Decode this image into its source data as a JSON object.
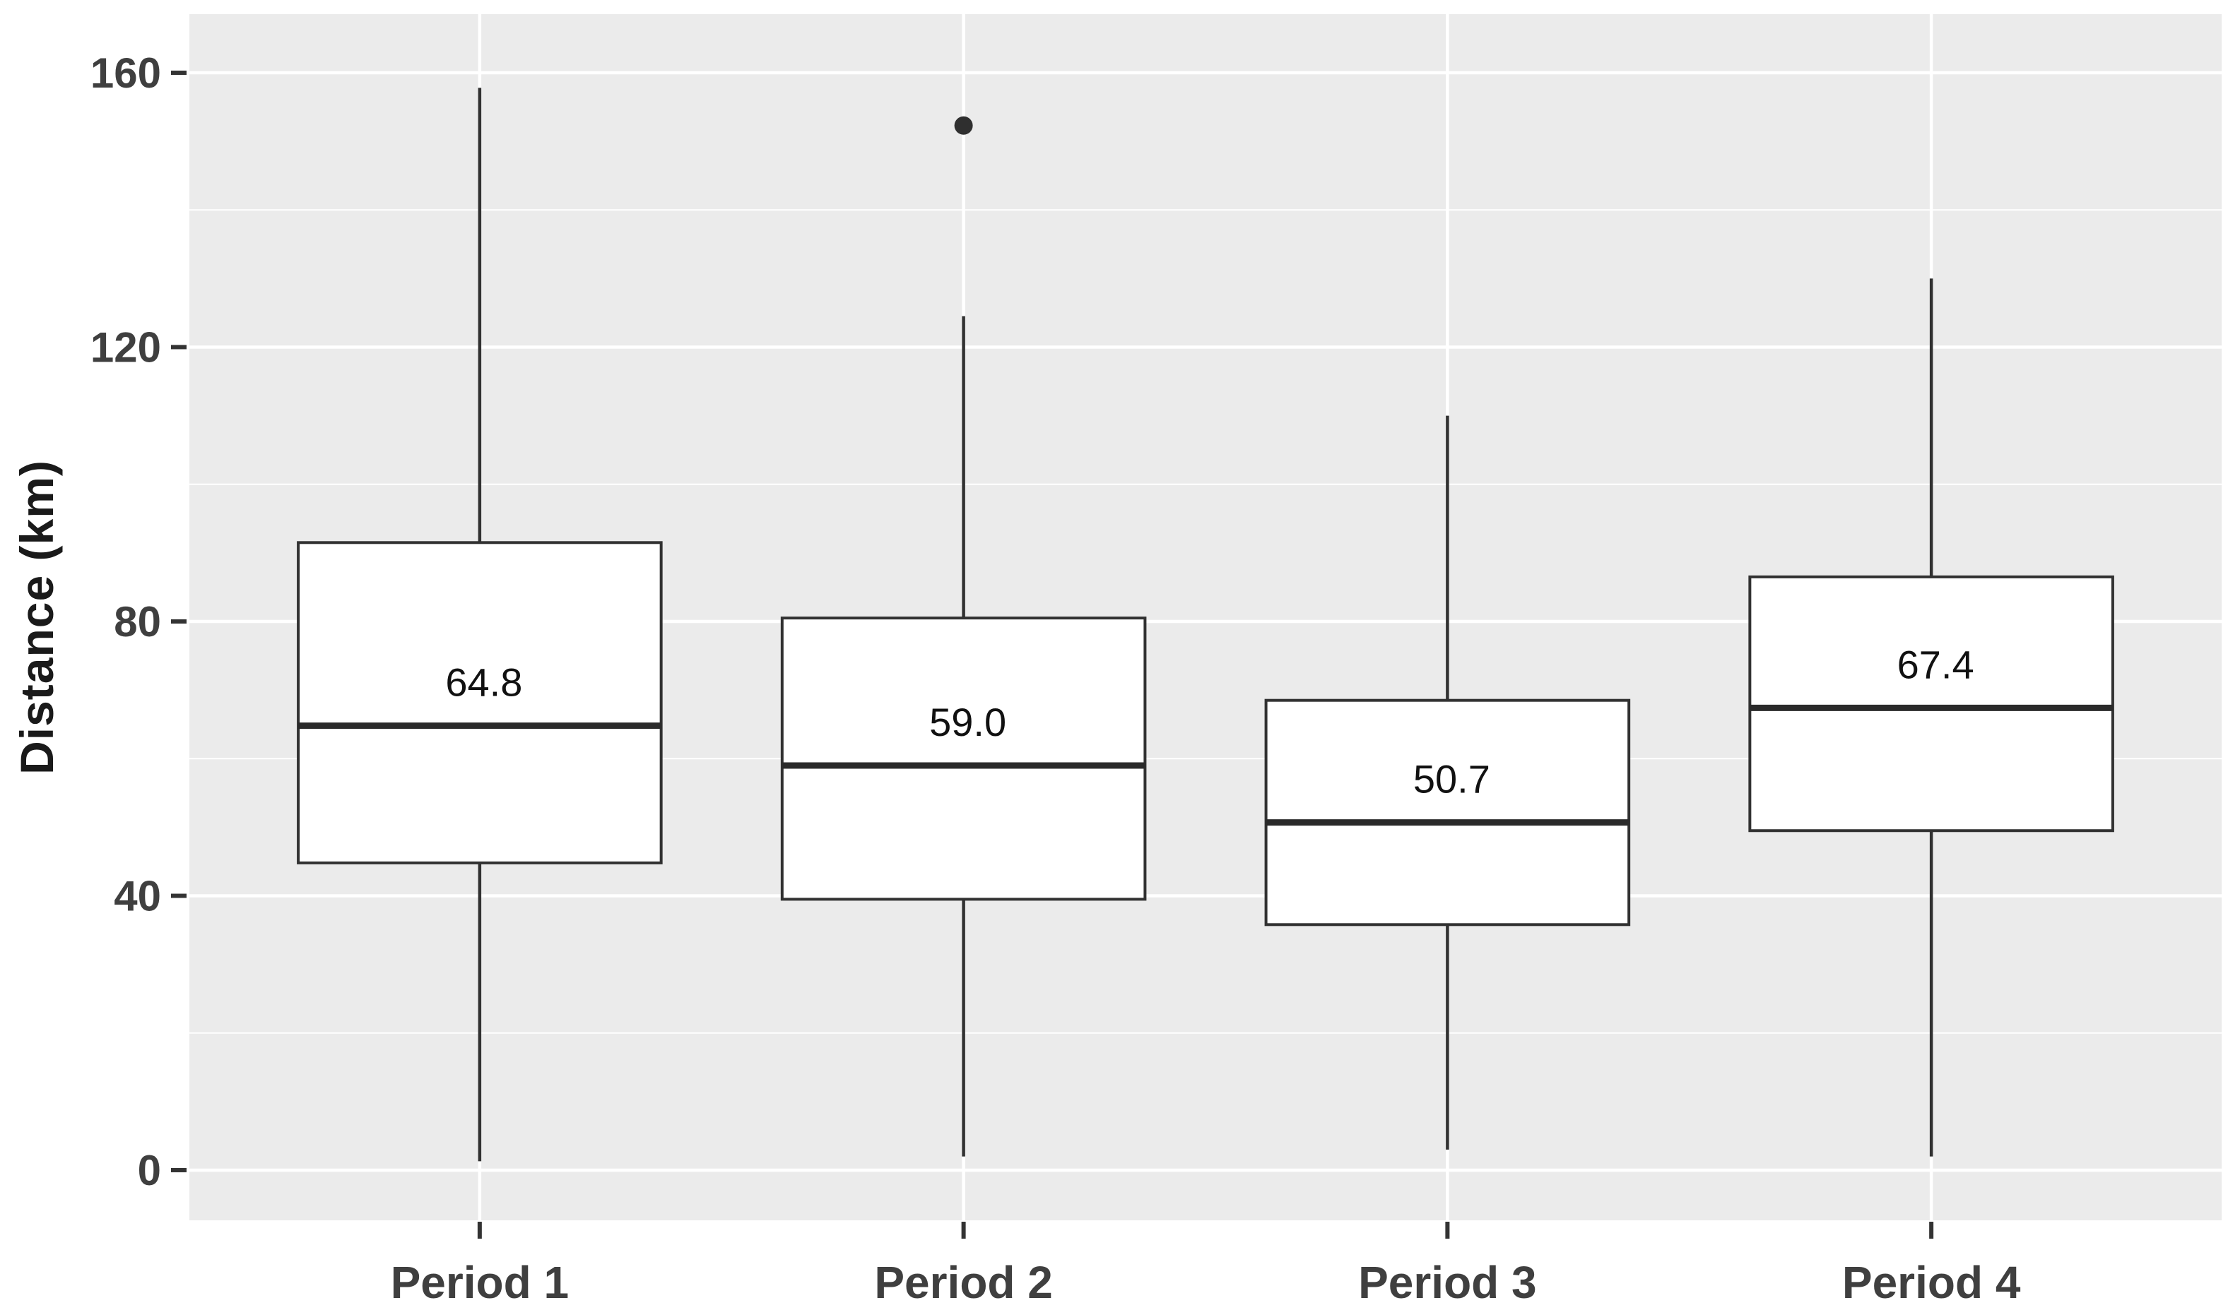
{
  "chart_data": {
    "type": "boxplot",
    "title": "",
    "xlabel": "",
    "ylabel": "Distance (km)",
    "categories": [
      "Period 1",
      "Period 2",
      "Period 3",
      "Period 4"
    ],
    "yticks": [
      0,
      40,
      80,
      120,
      160
    ],
    "ytick_labels": [
      "0",
      "40",
      "80",
      "120",
      "160"
    ],
    "ylim": [
      -7.3,
      168.6
    ],
    "grid": "white major and minor horizontal gridlines, white vertical gridline per category",
    "legend": "none",
    "panel_bg": "#EBEBEB",
    "gridline_color": "#FFFFFF",
    "box_fill": "#FFFFFF",
    "box_stroke": "#313131",
    "median_stroke": "#2A2A2A",
    "outlier_color": "#2F2F2F",
    "axis_text_color": "#3F3F3F",
    "axis_title_color": "#1A1A1A",
    "series": [
      {
        "category": "Period 1",
        "whisker_low": 1.3,
        "q1": 44.8,
        "median": 64.8,
        "q3": 91.5,
        "whisker_high": 157.8,
        "median_label": "64.8",
        "outliers": []
      },
      {
        "category": "Period 2",
        "whisker_low": 2.0,
        "q1": 39.5,
        "median": 59.0,
        "q3": 80.5,
        "whisker_high": 124.5,
        "median_label": "59.0",
        "outliers": [
          152.3
        ]
      },
      {
        "category": "Period 3",
        "whisker_low": 3.0,
        "q1": 35.8,
        "median": 50.7,
        "q3": 68.5,
        "whisker_high": 110.0,
        "median_label": "50.7",
        "outliers": []
      },
      {
        "category": "Period 4",
        "whisker_low": 2.0,
        "q1": 49.5,
        "median": 67.4,
        "q3": 86.5,
        "whisker_high": 130.0,
        "median_label": "67.4",
        "outliers": []
      }
    ]
  }
}
